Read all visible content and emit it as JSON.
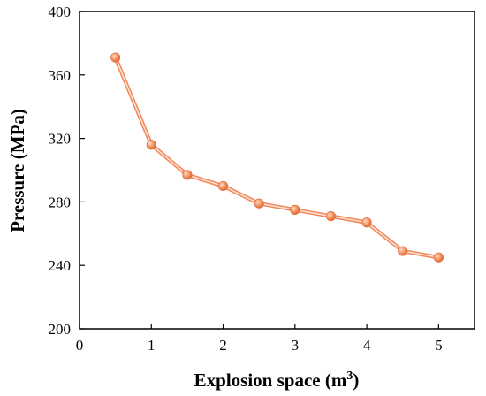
{
  "chart_data": {
    "type": "line",
    "title": "",
    "xlabel": "Explosion space (m",
    "xlabel_superscript": "3",
    "xlabel_close": ")",
    "ylabel": "Pressure (MPa)",
    "xlim": [
      0,
      5.5
    ],
    "ylim": [
      200,
      400
    ],
    "xticks": [
      "0",
      "1",
      "2",
      "3",
      "4",
      "5"
    ],
    "yticks": [
      "200",
      "240",
      "280",
      "320",
      "360",
      "400"
    ],
    "grid": false,
    "series": [
      {
        "color": "#f08a5d",
        "marker": "circle",
        "x": [
          0.5,
          1.0,
          1.5,
          2.0,
          2.5,
          3.0,
          3.5,
          4.0,
          4.5,
          5.0
        ],
        "y": [
          371,
          316,
          297,
          290,
          279,
          275,
          271,
          267,
          249,
          245
        ]
      }
    ]
  }
}
